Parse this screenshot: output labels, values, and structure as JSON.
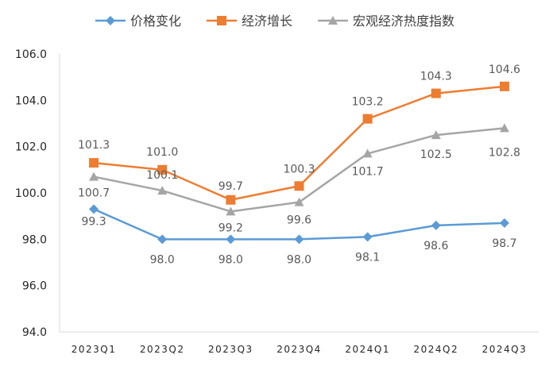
{
  "chart_data": {
    "type": "line",
    "title": "",
    "xlabel": "",
    "ylabel": "",
    "ylim": [
      94.0,
      106.0
    ],
    "yticks": [
      "94.0",
      "96.0",
      "98.0",
      "100.0",
      "102.0",
      "104.0",
      "106.0"
    ],
    "categories": [
      "2023Q1",
      "2023Q2",
      "2023Q3",
      "2023Q4",
      "2024Q1",
      "2024Q2",
      "2024Q3"
    ],
    "legend_position": "top",
    "series": [
      {
        "name": "价格变化",
        "color": "#5B9BD5",
        "marker": "diamond",
        "values": [
          99.3,
          98.0,
          98.0,
          98.0,
          98.1,
          98.6,
          98.7
        ],
        "labels": [
          "99.3",
          "98.0",
          "98.0",
          "98.0",
          "98.1",
          "98.6",
          "98.7"
        ]
      },
      {
        "name": "经济增长",
        "color": "#ED7D31",
        "marker": "square",
        "values": [
          101.3,
          101.0,
          99.7,
          100.3,
          103.2,
          104.3,
          104.6
        ],
        "labels": [
          "101.3",
          "101.0",
          "99.7",
          "100.3",
          "103.2",
          "104.3",
          "104.6"
        ]
      },
      {
        "name": "宏观经济热度指数",
        "color": "#A5A5A5",
        "marker": "triangle",
        "values": [
          100.7,
          100.1,
          99.2,
          99.6,
          101.7,
          102.5,
          102.8
        ],
        "labels": [
          "100.7",
          "100.1",
          "99.2",
          "99.6",
          "101.7",
          "102.5",
          "102.8"
        ]
      }
    ]
  }
}
